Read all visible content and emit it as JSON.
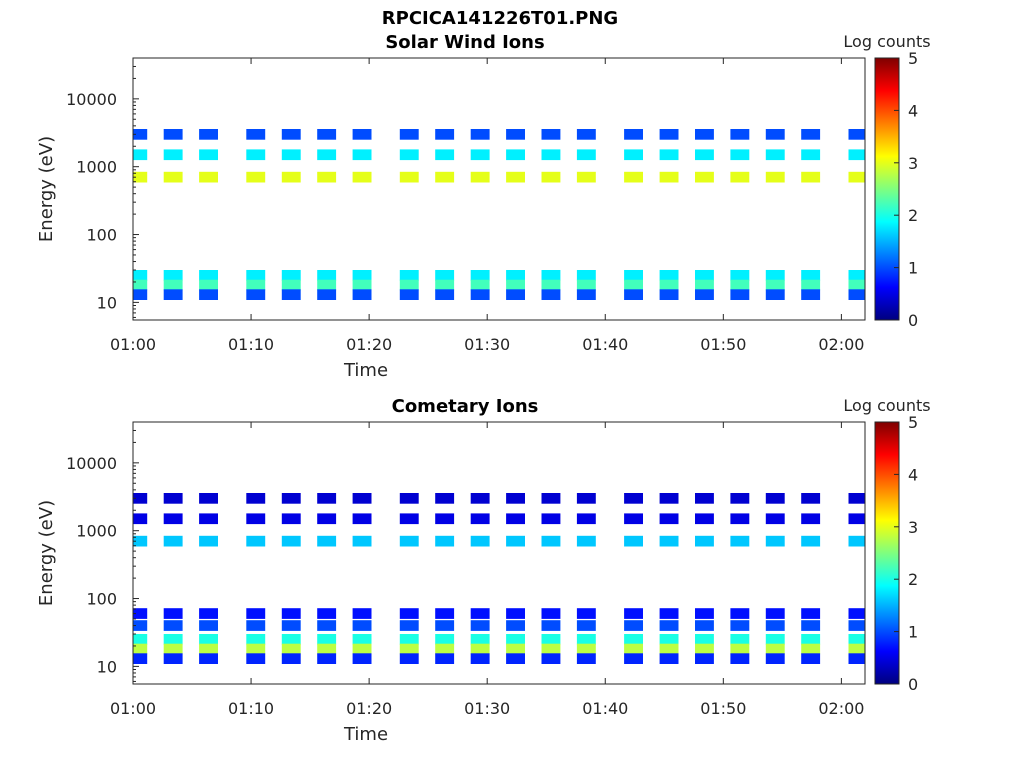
{
  "figure_title": "RPCICA141226T01.PNG",
  "colorscale": [
    "#00007f",
    "#0000ff",
    "#007fff",
    "#00ffff",
    "#7fff7f",
    "#ffff00",
    "#ff7f00",
    "#ff0000",
    "#7f0000"
  ],
  "chart_data": [
    {
      "type": "heatmap",
      "title": "Solar Wind Ions",
      "xlabel": "Time",
      "ylabel": "Energy (eV)",
      "colorbar_label": "Log counts",
      "colorbar_ticks": [
        "0",
        "1",
        "2",
        "3",
        "4",
        "5"
      ],
      "xticks": [
        "01:00",
        "01:10",
        "01:20",
        "01:30",
        "01:40",
        "01:50",
        "02:00"
      ],
      "yticks": [
        "10",
        "100",
        "1000",
        "10000"
      ],
      "ylog": true,
      "ylim": [
        5.5,
        40000
      ],
      "x_range": [
        "01:00",
        "02:02"
      ],
      "clim": [
        0,
        5
      ],
      "scan_times": [
        "01:00",
        "01:03",
        "01:06",
        "01:10",
        "01:13",
        "01:16",
        "01:19",
        "01:23",
        "01:26",
        "01:29",
        "01:32",
        "01:35",
        "01:38",
        "01:42",
        "01:45",
        "01:48",
        "01:51",
        "01:54",
        "01:57",
        "02:01"
      ],
      "bands": [
        {
          "energy": 700,
          "log_counts": 3.0
        },
        {
          "energy": 1500,
          "log_counts": 1.8
        },
        {
          "energy": 3000,
          "log_counts": 1.0
        },
        {
          "energy": 25,
          "log_counts": 1.8
        },
        {
          "energy": 18,
          "log_counts": 2.2
        },
        {
          "energy": 13,
          "log_counts": 1.0
        }
      ]
    },
    {
      "type": "heatmap",
      "title": "Cometary Ions",
      "xlabel": "Time",
      "ylabel": "Energy (eV)",
      "colorbar_label": "Log counts",
      "colorbar_ticks": [
        "0",
        "1",
        "2",
        "3",
        "4",
        "5"
      ],
      "xticks": [
        "01:00",
        "01:10",
        "01:20",
        "01:30",
        "01:40",
        "01:50",
        "02:00"
      ],
      "yticks": [
        "10",
        "100",
        "1000",
        "10000"
      ],
      "ylog": true,
      "ylim": [
        5.5,
        40000
      ],
      "x_range": [
        "01:00",
        "02:02"
      ],
      "clim": [
        0,
        5
      ],
      "scan_times": [
        "01:00",
        "01:03",
        "01:06",
        "01:10",
        "01:13",
        "01:16",
        "01:19",
        "01:23",
        "01:26",
        "01:29",
        "01:32",
        "01:35",
        "01:38",
        "01:42",
        "01:45",
        "01:48",
        "01:51",
        "01:54",
        "01:57",
        "02:01"
      ],
      "bands": [
        {
          "energy": 700,
          "log_counts": 1.6
        },
        {
          "energy": 1500,
          "log_counts": 0.5
        },
        {
          "energy": 3000,
          "log_counts": 0.4
        },
        {
          "energy": 60,
          "log_counts": 0.7
        },
        {
          "energy": 40,
          "log_counts": 1.0
        },
        {
          "energy": 25,
          "log_counts": 2.0
        },
        {
          "energy": 18,
          "log_counts": 2.8
        },
        {
          "energy": 13,
          "log_counts": 0.8
        }
      ]
    }
  ]
}
